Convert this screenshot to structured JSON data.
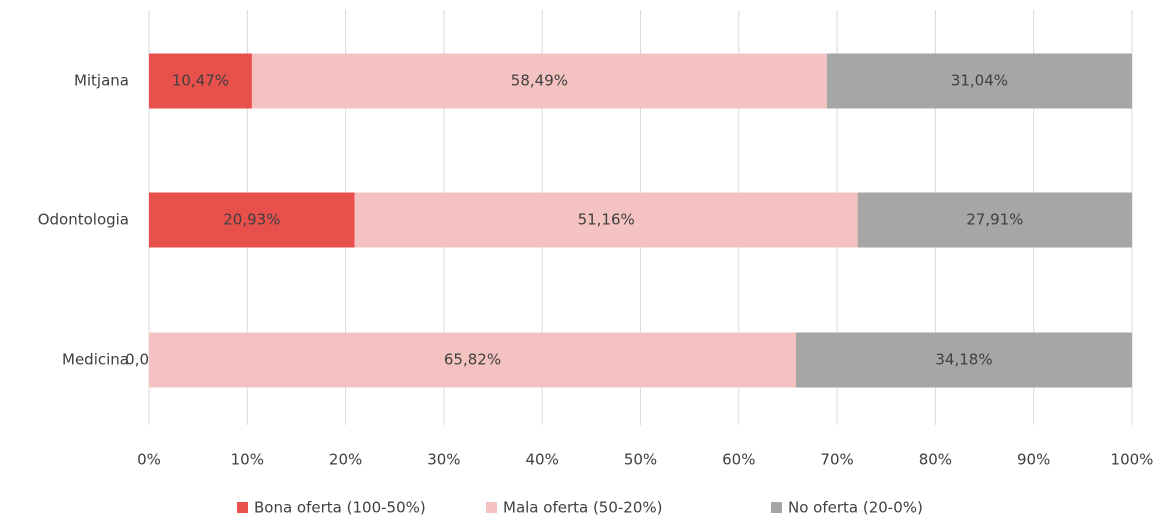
{
  "chart_data": {
    "type": "stacked_barh",
    "categories": [
      "Mitjana",
      "Odontologia",
      "Medicina"
    ],
    "series": [
      {
        "name": "Bona oferta (100-50%)",
        "color": "#e8504c",
        "values": [
          10.47,
          20.93,
          0.0
        ],
        "value_labels": [
          "10,47%",
          "20,93%",
          "0,00%"
        ]
      },
      {
        "name": "Mala oferta (50-20%)",
        "color": "#f5c2c2",
        "values": [
          58.49,
          51.16,
          65.82
        ],
        "value_labels": [
          "58,49%",
          "51,16%",
          "65,82%"
        ]
      },
      {
        "name": "No oferta (20-0%)",
        "color": "#a6a6a6",
        "values": [
          31.04,
          27.91,
          34.18
        ],
        "value_labels": [
          "31,04%",
          "27,91%",
          "34,18%"
        ]
      }
    ],
    "xlim": [
      0,
      100
    ],
    "xticks": [
      {
        "value": 0,
        "label": "0%"
      },
      {
        "value": 10,
        "label": "10%"
      },
      {
        "value": 20,
        "label": "20%"
      },
      {
        "value": 30,
        "label": "30%"
      },
      {
        "value": 40,
        "label": "40%"
      },
      {
        "value": 50,
        "label": "50%"
      },
      {
        "value": 60,
        "label": "60%"
      },
      {
        "value": 70,
        "label": "70%"
      },
      {
        "value": 80,
        "label": "80%"
      },
      {
        "value": 90,
        "label": "90%"
      },
      {
        "value": 100,
        "label": "100%"
      }
    ],
    "grid": true,
    "legend": "bottom"
  }
}
